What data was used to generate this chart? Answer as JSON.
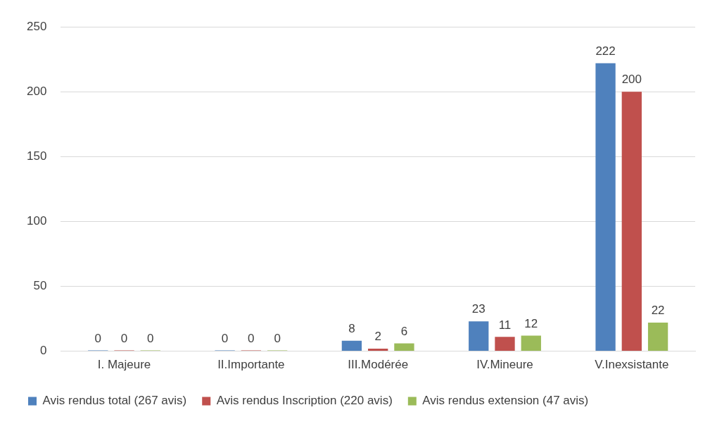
{
  "chart_data": {
    "type": "bar",
    "categories": [
      "I. Majeure",
      "II.Importante",
      "III.Modérée",
      "IV.Mineure",
      "V.Inexsistante"
    ],
    "series": [
      {
        "name": "Avis rendus total (267 avis)",
        "color": "#4f81bd",
        "values": [
          0,
          0,
          8,
          23,
          222
        ]
      },
      {
        "name": "Avis rendus Inscription (220 avis)",
        "color": "#c0504d",
        "values": [
          0,
          0,
          2,
          11,
          200
        ]
      },
      {
        "name": "Avis rendus extension (47 avis)",
        "color": "#9bbb59",
        "values": [
          0,
          0,
          6,
          12,
          22
        ]
      }
    ],
    "ylim": [
      0,
      250
    ],
    "yticks": [
      0,
      50,
      100,
      150,
      200,
      250
    ],
    "grid": "y",
    "legend": "bottom",
    "data_labels": true
  }
}
